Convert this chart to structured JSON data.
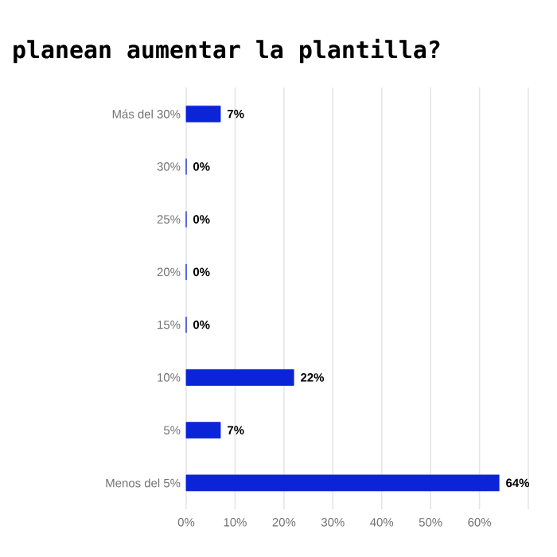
{
  "chart_data": {
    "type": "bar",
    "orientation": "horizontal",
    "title": "planean aumentar la plantilla?",
    "categories": [
      "Más del 30%",
      "30%",
      "25%",
      "20%",
      "15%",
      "10%",
      "5%",
      "Menos del 5%"
    ],
    "values": [
      7,
      0,
      0,
      0,
      0,
      22,
      7,
      64
    ],
    "value_labels": [
      "7%",
      "0%",
      "0%",
      "0%",
      "0%",
      "22%",
      "7%",
      "64%"
    ],
    "color": "#0b24d8",
    "xlim": [
      0,
      70
    ],
    "xticks": [
      {
        "value": 0,
        "label": "0%"
      },
      {
        "value": 10,
        "label": "10%"
      },
      {
        "value": 20,
        "label": "20%"
      },
      {
        "value": 30,
        "label": "30%"
      },
      {
        "value": 40,
        "label": "40%"
      },
      {
        "value": 50,
        "label": "50%"
      },
      {
        "value": 60,
        "label": "60%"
      },
      {
        "value": 70,
        "label": null
      }
    ],
    "grid": "x"
  }
}
